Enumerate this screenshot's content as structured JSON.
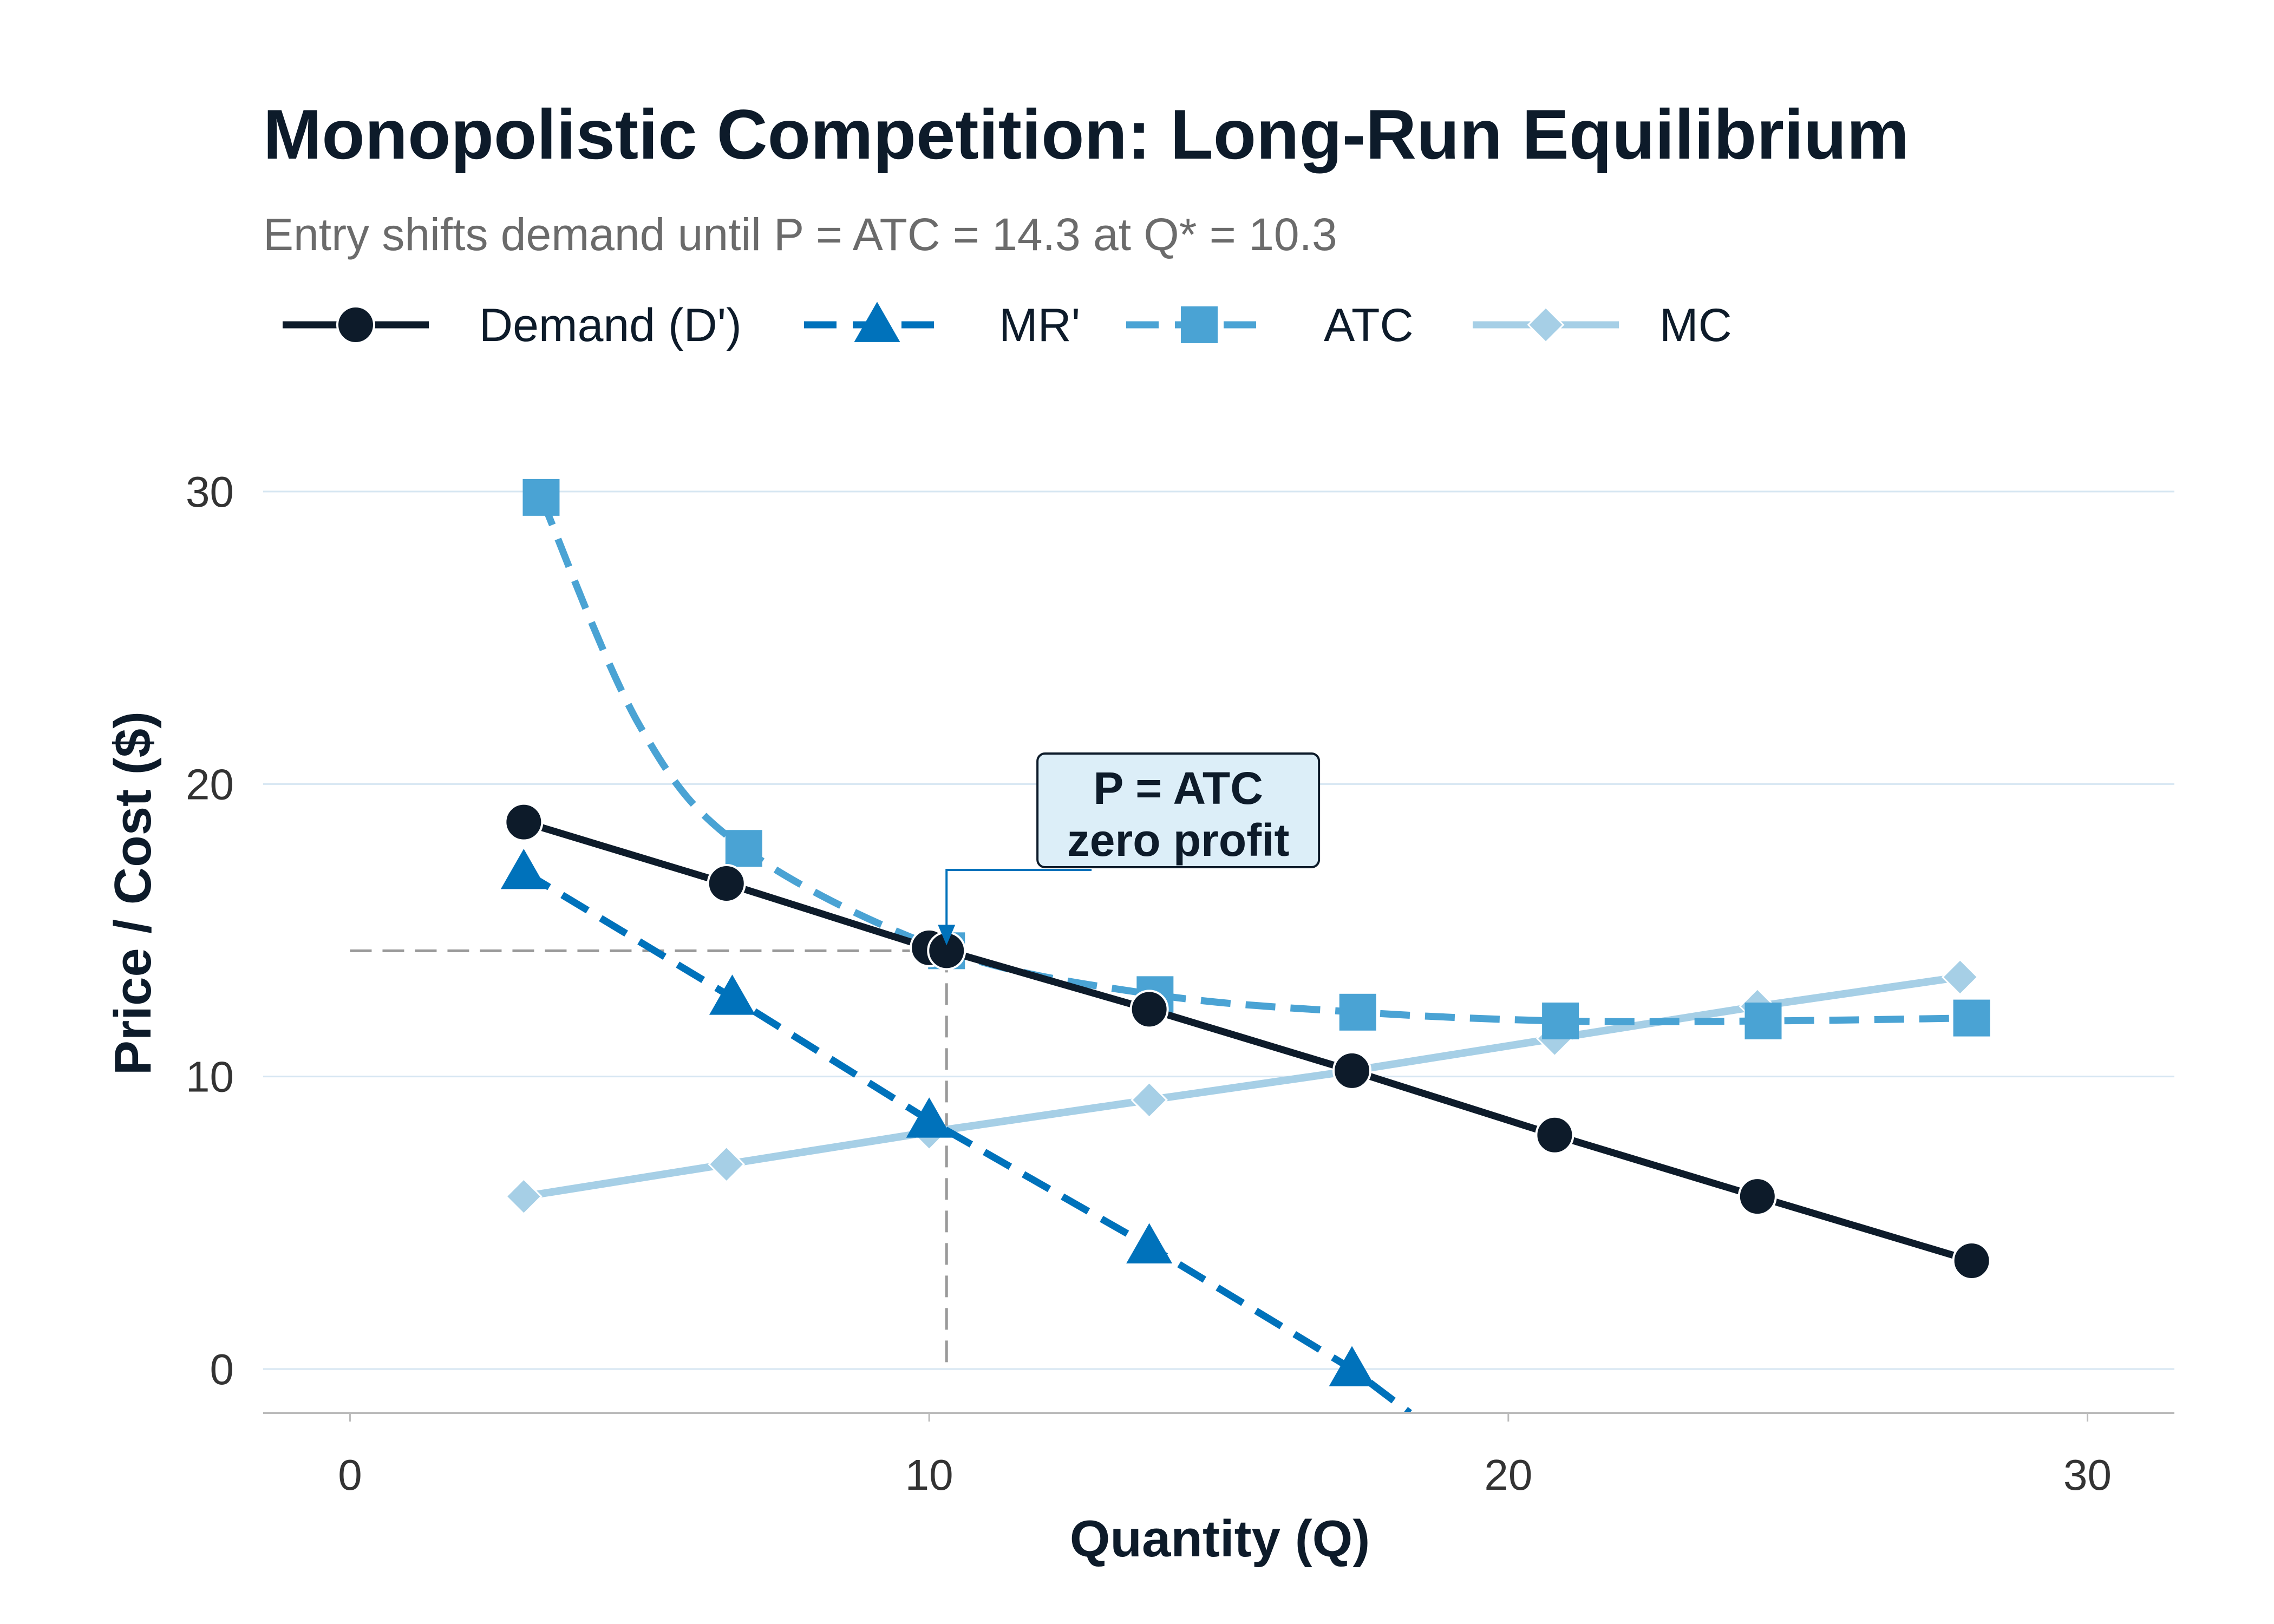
{
  "chart_data": {
    "type": "line",
    "title": "Monopolistic Competition: Long-Run Equilibrium",
    "subtitle": "Entry shifts demand until P = ATC = 14.3 at Q* = 10.3",
    "xlabel": "Quantity (Q)",
    "ylabel": "Price / Cost ($)",
    "xlim": [
      -1.5,
      31.5
    ],
    "ylim": [
      -1.5,
      32
    ],
    "xticks": [
      0,
      10,
      20,
      30
    ],
    "yticks": [
      0,
      10,
      20,
      30
    ],
    "grid": "horizontal",
    "legend_position": "top-left",
    "equilibrium": {
      "q": 10.3,
      "p": 14.3
    },
    "annotation": {
      "line1": "P = ATC",
      "line2": "zero profit",
      "x": 14.3,
      "y": 19.1
    },
    "series": [
      {
        "name": "Demand (D')",
        "color": "#0d1b2a",
        "style": "solid",
        "marker": "circle",
        "x": [
          3.0,
          6.5,
          10.0,
          10.3,
          13.8,
          17.3,
          20.8,
          24.3,
          28.0
        ],
        "y": [
          18.7,
          16.6,
          14.4,
          14.3,
          12.3,
          10.2,
          8.0,
          5.9,
          3.7
        ]
      },
      {
        "name": "MR'",
        "color": "#0072bb",
        "style": "dashed",
        "marker": "triangle",
        "x": [
          3.0,
          6.6,
          10.0,
          13.8,
          17.3,
          18.3
        ],
        "y": [
          17.0,
          12.7,
          8.5,
          4.2,
          0.0,
          -1.5
        ]
      },
      {
        "name": "ATC",
        "color": "#4aa3d4",
        "style": "dashed",
        "marker": "square",
        "x": [
          3.3,
          5.0,
          6.8,
          10.3,
          13.9,
          17.4,
          20.9,
          24.4,
          28.0
        ],
        "y": [
          29.8,
          22.0,
          17.8,
          14.3,
          12.8,
          12.2,
          11.9,
          11.9,
          12.0
        ]
      },
      {
        "name": "MC",
        "color": "#a6cfe6",
        "style": "solid",
        "marker": "diamond",
        "x": [
          3.0,
          6.5,
          10.0,
          13.8,
          17.3,
          20.8,
          24.3,
          27.8
        ],
        "y": [
          5.9,
          7.0,
          8.1,
          9.2,
          10.2,
          11.3,
          12.4,
          13.4
        ]
      }
    ]
  }
}
